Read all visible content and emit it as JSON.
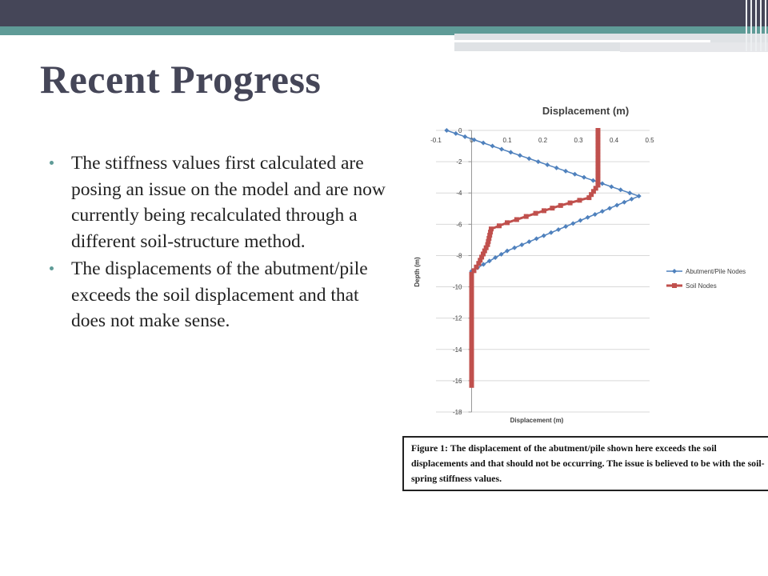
{
  "slide": {
    "title": "Recent Progress",
    "bullets": [
      "The stiffness values first calculated are posing an issue on the model and are now currently being recalculated through a different soil-structure method.",
      "The displacements of the abutment/pile exceeds the soil displacement and that does not make sense."
    ],
    "caption": "Figure 1: The displacement of the abutment/pile shown here exceeds the soil displacements and that should not be occurring. The issue is believed to be with the soil-spring stiffness values.",
    "colors": {
      "title": "#454658",
      "accent": "#5f9b97",
      "header_dark": "#454658"
    }
  },
  "chart_data": {
    "type": "scatter",
    "title": "Displacement (m)",
    "xlabel": "Displacement (m)",
    "ylabel": "Depth (m)",
    "xlim": [
      -0.1,
      0.5
    ],
    "ylim": [
      -18,
      0
    ],
    "x_ticks": [
      "-0.1",
      "0",
      "0.1",
      "0.2",
      "0.3",
      "0.4",
      "0.5"
    ],
    "y_ticks": [
      "0",
      "-2",
      "-4",
      "-6",
      "-8",
      "-10",
      "-12",
      "-14",
      "-16",
      "-18"
    ],
    "grid": "horizontal",
    "legend_position": "right",
    "series": [
      {
        "name": "Abutment/Pile Nodes",
        "color": "#4f81bd",
        "marker": "diamond",
        "points": [
          [
            -0.07,
            0
          ],
          [
            0.47,
            -4.2
          ],
          [
            0.1,
            -7.7
          ],
          [
            0.0,
            -9.0
          ],
          [
            0.0,
            -9.6
          ]
        ]
      },
      {
        "name": "Soil Nodes",
        "color": "#c0504d",
        "marker": "square",
        "points": [
          [
            0.355,
            0
          ],
          [
            0.355,
            -3.5
          ],
          [
            0.33,
            -4.3
          ],
          [
            0.25,
            -4.8
          ],
          [
            0.18,
            -5.3
          ],
          [
            0.1,
            -5.9
          ],
          [
            0.055,
            -6.3
          ],
          [
            0.045,
            -7.3
          ],
          [
            0.02,
            -8.5
          ],
          [
            0.0,
            -9.2
          ],
          [
            0.0,
            -16.3
          ]
        ]
      }
    ]
  }
}
